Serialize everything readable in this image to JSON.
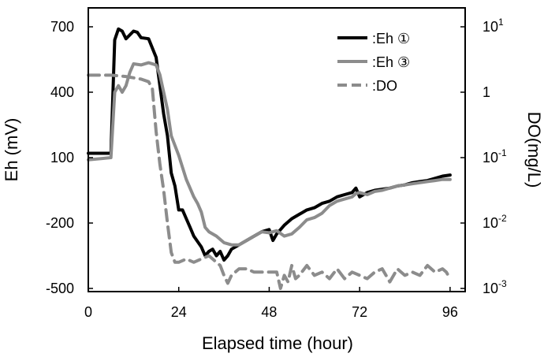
{
  "chart_data": {
    "type": "line",
    "title": "",
    "xlabel": "Elapsed time (hour)",
    "ylabel": "Eh (mV)",
    "y2label": "DO(mg/L)",
    "x_ticks": [
      0,
      24,
      48,
      72,
      96
    ],
    "y_ticks": [
      -500,
      -200,
      100,
      400,
      700
    ],
    "y2_scale": "log",
    "y2_ticks": [
      {
        "base": "10",
        "exp": "-3"
      },
      {
        "base": "10",
        "exp": "-2"
      },
      {
        "base": "10",
        "exp": "-1"
      },
      {
        "base": "1",
        "exp": ""
      },
      {
        "base": "10",
        "exp": "1"
      }
    ],
    "xlim": [
      0,
      100
    ],
    "ylim": [
      -500,
      750
    ],
    "y2lim_log10": [
      -3,
      1
    ],
    "grid": false,
    "legend_placement": "top-right",
    "series": [
      {
        "name": ":Eh ①",
        "axis": "left",
        "color": "#000000",
        "dash": "solid",
        "x": [
          0,
          6,
          7,
          8,
          9,
          10,
          12,
          13,
          14,
          16,
          18,
          19,
          20,
          21,
          22,
          23,
          24,
          25,
          26,
          27,
          28,
          30,
          31,
          32,
          33,
          34,
          35,
          36,
          37,
          38,
          40,
          42,
          44,
          46,
          48,
          49,
          50,
          52,
          54,
          56,
          58,
          60,
          62,
          64,
          66,
          68,
          70,
          71,
          72,
          74,
          76,
          78,
          80,
          82,
          84,
          86,
          88,
          90,
          92,
          94,
          96
        ],
        "y": [
          120,
          120,
          640,
          690,
          680,
          645,
          680,
          675,
          650,
          645,
          560,
          430,
          300,
          200,
          30,
          -30,
          -140,
          -140,
          -180,
          -220,
          -260,
          -310,
          -350,
          -330,
          -320,
          -350,
          -330,
          -370,
          -350,
          -320,
          -300,
          -280,
          -260,
          -240,
          -230,
          -280,
          -250,
          -210,
          -180,
          -160,
          -140,
          -130,
          -110,
          -100,
          -80,
          -70,
          -60,
          -40,
          -80,
          -60,
          -50,
          -45,
          -40,
          -30,
          -25,
          -15,
          -10,
          -5,
          5,
          15,
          20
        ]
      },
      {
        "name": ":Eh ③",
        "axis": "left",
        "color": "#8c8c8c",
        "dash": "solid",
        "x": [
          0,
          6,
          7,
          8,
          9,
          10,
          11,
          12,
          14,
          16,
          18,
          19,
          20,
          21,
          22,
          24,
          26,
          28,
          29,
          30,
          31,
          32,
          34,
          36,
          38,
          40,
          42,
          44,
          46,
          48,
          50,
          52,
          54,
          56,
          58,
          60,
          62,
          64,
          66,
          68,
          70,
          71,
          72,
          74,
          76,
          78,
          80,
          82,
          84,
          86,
          88,
          90,
          92,
          94,
          96
        ],
        "y": [
          90,
          100,
          400,
          430,
          400,
          430,
          490,
          530,
          525,
          535,
          525,
          480,
          400,
          320,
          200,
          110,
          0,
          -80,
          -110,
          -150,
          -220,
          -240,
          -260,
          -290,
          -300,
          -300,
          -280,
          -260,
          -240,
          -245,
          -235,
          -260,
          -250,
          -220,
          -185,
          -175,
          -155,
          -120,
          -100,
          -90,
          -80,
          -65,
          -60,
          -70,
          -55,
          -50,
          -40,
          -30,
          -25,
          -20,
          -15,
          -10,
          -5,
          0,
          0
        ]
      },
      {
        "name": ":DO",
        "axis": "right",
        "color": "#8c8c8c",
        "dash": "dashed",
        "x": [
          0,
          6,
          10,
          14,
          16,
          17,
          18,
          19,
          20,
          21,
          22,
          23,
          24,
          26,
          28,
          30,
          32,
          34,
          35,
          36,
          37,
          38,
          40,
          42,
          44,
          46,
          48,
          50,
          51,
          52,
          53,
          54,
          55,
          56,
          58,
          60,
          62,
          64,
          66,
          68,
          70,
          72,
          74,
          76,
          78,
          80,
          82,
          84,
          86,
          88,
          90,
          92,
          94,
          95,
          96
        ],
        "log10": [
          0.26,
          0.26,
          0.24,
          0.2,
          0.16,
          0.05,
          -0.6,
          -1.1,
          -1.5,
          -2.0,
          -2.45,
          -2.6,
          -2.6,
          -2.55,
          -2.6,
          -2.55,
          -2.5,
          -2.6,
          -2.65,
          -2.8,
          -2.92,
          -2.8,
          -2.7,
          -2.7,
          -2.75,
          -2.75,
          -2.75,
          -2.75,
          -3.0,
          -2.8,
          -2.9,
          -2.65,
          -2.85,
          -2.8,
          -2.65,
          -2.8,
          -2.75,
          -2.85,
          -2.7,
          -2.85,
          -2.75,
          -2.8,
          -2.85,
          -2.75,
          -2.7,
          -2.9,
          -2.7,
          -2.8,
          -2.75,
          -2.8,
          -2.65,
          -2.75,
          -2.7,
          -2.75,
          -2.85
        ]
      }
    ]
  }
}
